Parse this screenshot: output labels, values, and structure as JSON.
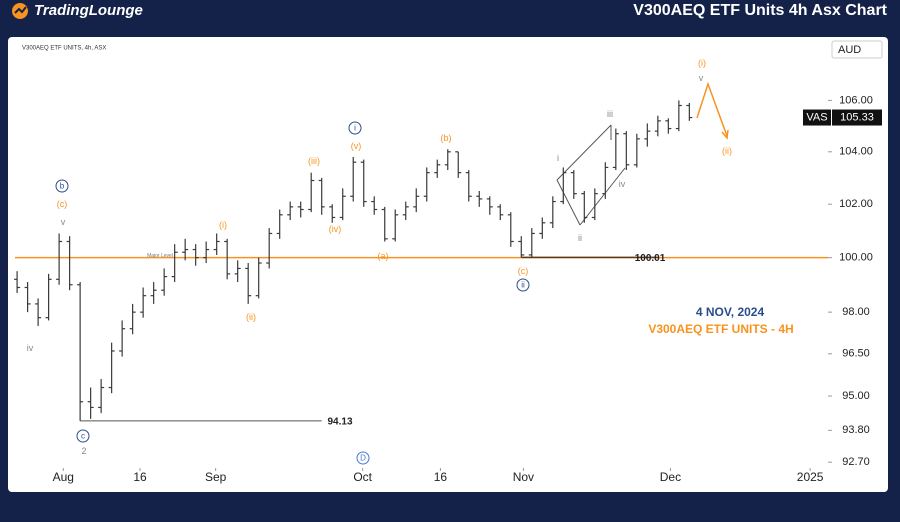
{
  "header": {
    "logo": "TradingLounge",
    "title": "V300AEQ ETF Units 4h Asx Chart"
  },
  "chart_data": {
    "type": "ohlc",
    "subtitle": "V300AEQ ETF UNITS, 4h, ASX",
    "currency": "AUD",
    "log_scale": true,
    "grid": false,
    "color": "#3a3a3a",
    "ylim": [
      92.5,
      108.4
    ],
    "yticks": [
      {
        "value": 106,
        "label": "106.00"
      },
      {
        "value": 104,
        "label": "104.00"
      },
      {
        "value": 102,
        "label": "102.00"
      },
      {
        "value": 100,
        "label": "100.00"
      },
      {
        "value": 98,
        "label": "98.00"
      },
      {
        "value": 96.5,
        "label": "96.50"
      },
      {
        "value": 95,
        "label": "95.00"
      },
      {
        "value": 93.8,
        "label": "93.80"
      },
      {
        "value": 92.7,
        "label": "92.70"
      }
    ],
    "xlim": [
      -0.2,
      77.2
    ],
    "xticks": [
      {
        "value": 4.4,
        "label": "Aug"
      },
      {
        "value": 11.7,
        "label": "16"
      },
      {
        "value": 18.9,
        "label": "Sep"
      },
      {
        "value": 32.9,
        "label": "Oct"
      },
      {
        "value": 40.3,
        "label": "16"
      },
      {
        "value": 48.2,
        "label": "Nov"
      },
      {
        "value": 62.2,
        "label": "Dec"
      },
      {
        "value": 75.5,
        "label": "2025"
      }
    ],
    "open": [
      99.2,
      98.9,
      98.3,
      97.8,
      99.2,
      100.6,
      99.0,
      94.8,
      94.6,
      95.3,
      96.6,
      97.4,
      98.0,
      98.6,
      98.8,
      99.3,
      100.2,
      100.3,
      100.0,
      100.3,
      100.6,
      99.4,
      99.6,
      98.6,
      99.8,
      100.9,
      101.6,
      101.9,
      101.8,
      102.9,
      101.9,
      101.5,
      102.3,
      103.6,
      102.1,
      101.8,
      100.7,
      101.6,
      101.9,
      102.3,
      103.2,
      103.5,
      104.0,
      103.2,
      102.3,
      102.2,
      101.9,
      101.6,
      100.6,
      100.1,
      100.9,
      101.3,
      102.1,
      103.2,
      102.4,
      101.5,
      102.4,
      103.4,
      104.7,
      103.5,
      104.5,
      104.8,
      105.2,
      104.9,
      105.8
    ],
    "high": [
      99.5,
      99.1,
      98.5,
      99.4,
      100.9,
      100.8,
      99.1,
      95.3,
      95.6,
      96.9,
      97.7,
      98.3,
      98.9,
      99.1,
      99.6,
      100.5,
      100.7,
      100.5,
      100.6,
      100.9,
      100.7,
      99.9,
      99.8,
      100.0,
      101.1,
      101.8,
      102.1,
      102.1,
      103.2,
      103.0,
      102.0,
      102.6,
      103.8,
      103.7,
      102.3,
      101.9,
      101.8,
      102.1,
      102.6,
      103.4,
      103.7,
      104.1,
      104.0,
      103.3,
      102.5,
      102.3,
      102.0,
      101.7,
      100.8,
      101.1,
      101.5,
      102.3,
      103.4,
      103.3,
      102.5,
      102.6,
      103.6,
      104.9,
      104.8,
      104.7,
      105.1,
      105.4,
      105.3,
      106.0,
      105.9
    ],
    "low": [
      98.7,
      98.0,
      97.5,
      97.7,
      99.0,
      98.8,
      94.13,
      94.2,
      94.4,
      95.1,
      96.4,
      97.2,
      97.8,
      98.3,
      98.6,
      99.1,
      99.9,
      99.7,
      99.8,
      100.1,
      99.2,
      99.1,
      98.3,
      98.5,
      99.6,
      100.7,
      101.4,
      101.5,
      101.7,
      101.6,
      101.3,
      101.4,
      102.1,
      101.9,
      101.6,
      100.6,
      100.6,
      101.4,
      101.7,
      102.1,
      103.0,
      103.3,
      103.0,
      102.1,
      101.9,
      101.6,
      101.4,
      100.4,
      100.01,
      100.0,
      100.7,
      101.1,
      102.0,
      102.2,
      101.3,
      101.4,
      102.2,
      103.3,
      103.3,
      103.4,
      104.2,
      104.6,
      104.7,
      104.8,
      105.2
    ],
    "close": [
      98.9,
      98.3,
      97.8,
      99.2,
      100.6,
      99.0,
      94.8,
      94.6,
      95.3,
      96.6,
      97.4,
      98.0,
      98.6,
      98.8,
      99.3,
      100.2,
      100.3,
      100.0,
      100.3,
      100.6,
      99.4,
      99.6,
      98.6,
      99.8,
      100.9,
      101.6,
      101.9,
      101.8,
      102.9,
      101.9,
      101.5,
      102.3,
      103.6,
      102.1,
      101.8,
      100.7,
      101.6,
      101.9,
      102.3,
      103.2,
      103.5,
      104.0,
      103.2,
      102.3,
      102.2,
      101.9,
      101.6,
      100.6,
      100.1,
      100.9,
      101.3,
      102.1,
      103.2,
      102.4,
      101.5,
      102.4,
      103.4,
      104.7,
      103.5,
      104.5,
      104.8,
      105.2,
      104.9,
      105.8,
      105.33
    ],
    "symbol": "VAS",
    "last_price": 105.33,
    "major_level": {
      "value": 100,
      "label": "Major Level",
      "color": "#f7931e"
    },
    "levels": [
      100.01,
      94.13
    ],
    "wave_labels": [
      {
        "text": "iv",
        "color": "#888888"
      },
      {
        "text": "v",
        "color": "#888888"
      },
      {
        "text": "2",
        "color": "#888888"
      },
      {
        "text": "i",
        "color": "#888888"
      },
      {
        "text": "ii",
        "color": "#888888"
      },
      {
        "text": "iii",
        "color": "#888888"
      },
      {
        "text": "iv",
        "color": "#888888"
      },
      {
        "text": "v",
        "color": "#888888"
      },
      {
        "text": "(c)",
        "color": "#f7931e"
      },
      {
        "text": "(i)",
        "color": "#f7931e"
      },
      {
        "text": "(ii)",
        "color": "#f7931e"
      },
      {
        "text": "(iii)",
        "color": "#f7931e"
      },
      {
        "text": "(iv)",
        "color": "#f7931e"
      },
      {
        "text": "(v)",
        "color": "#f7931e"
      },
      {
        "text": "(a)",
        "color": "#f7931e"
      },
      {
        "text": "(b)",
        "color": "#f7931e"
      },
      {
        "text": "(c)",
        "color": "#f7931e"
      },
      {
        "text": "(i)",
        "color": "#f7931e"
      },
      {
        "text": "(ii)",
        "color": "#f7931e"
      },
      {
        "text": "b",
        "color": "#2b4c8c"
      },
      {
        "text": "c",
        "color": "#2b4c8c"
      },
      {
        "text": "i",
        "color": "#2b4c8c"
      },
      {
        "text": "ii",
        "color": "#2b4c8c"
      },
      {
        "text": "D",
        "color": "#4a78d0"
      }
    ],
    "date_note": "4 NOV, 2024",
    "chart_note": "V300AEQ ETF UNITS - 4H"
  }
}
